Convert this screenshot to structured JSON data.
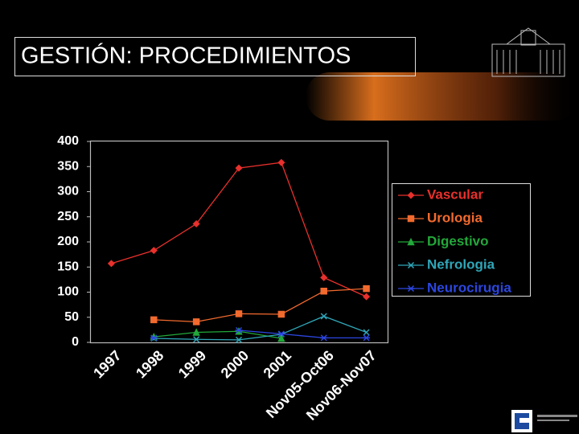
{
  "chart_data": {
    "type": "line",
    "title": "GESTIÓN: PROCEDIMIENTOS",
    "categories": [
      "1997",
      "1998",
      "1999",
      "2000",
      "2001",
      "Nov05-Oct06",
      "Nov06-Nov07"
    ],
    "series": [
      {
        "name": "Vascular",
        "color": "#e8302c",
        "values": [
          157,
          183,
          236,
          347,
          358,
          129,
          91
        ]
      },
      {
        "name": "Urologia",
        "color": "#f26a2e",
        "values": [
          null,
          45,
          41,
          57,
          56,
          102,
          107
        ]
      },
      {
        "name": "Digestivo",
        "color": "#22a83a",
        "values": [
          null,
          11,
          20,
          22,
          8,
          null,
          null
        ]
      },
      {
        "name": "Nefrologia",
        "color": "#2fa6b8",
        "values": [
          null,
          8,
          6,
          5,
          16,
          52,
          20
        ]
      },
      {
        "name": "Neurocirugia",
        "color": "#2c46e0",
        "values": [
          null,
          9,
          null,
          24,
          17,
          9,
          9
        ]
      }
    ],
    "ylim": [
      0,
      400
    ],
    "yticks": [
      0,
      50,
      100,
      150,
      200,
      250,
      300,
      350,
      400
    ],
    "grid": false
  }
}
